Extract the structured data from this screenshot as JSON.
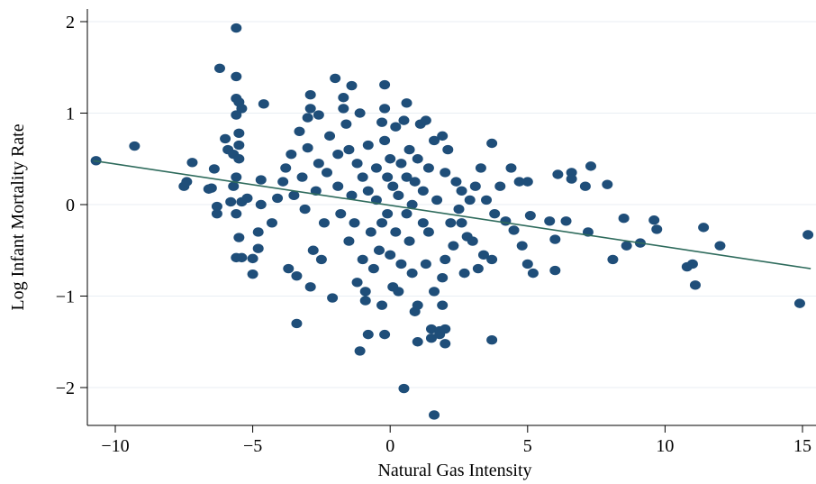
{
  "chart_data": {
    "type": "scatter",
    "title": "",
    "xlabel": "Natural Gas Intensity",
    "ylabel": "Log Infant Mortality Rate",
    "xlim": [
      -11,
      15.5
    ],
    "ylim": [
      -2.4,
      2.1
    ],
    "xticks": [
      -10,
      -5,
      0,
      5,
      10,
      15
    ],
    "xtick_labels": [
      "−10",
      "−5",
      "0",
      "5",
      "10",
      "15"
    ],
    "yticks": [
      -2,
      -1,
      0,
      1,
      2
    ],
    "ytick_labels": [
      "−2",
      "−1",
      "0",
      "1",
      "2"
    ],
    "grid": "horizontal",
    "marker_color": "#1f4e79",
    "fit_line_color": "#2e6b5c",
    "fit_line": {
      "x": [
        -10.8,
        15.3
      ],
      "y": [
        0.48,
        -0.7
      ]
    },
    "series": [
      {
        "points": [
          [
            -10.7,
            0.48
          ],
          [
            -9.3,
            0.64
          ],
          [
            -7.5,
            0.2
          ],
          [
            -7.4,
            0.25
          ],
          [
            -7.2,
            0.46
          ],
          [
            -6.6,
            0.17
          ],
          [
            -6.5,
            0.18
          ],
          [
            -6.4,
            0.39
          ],
          [
            -6.3,
            -0.02
          ],
          [
            -6.3,
            -0.1
          ],
          [
            -6.2,
            1.49
          ],
          [
            -6.0,
            0.72
          ],
          [
            -5.9,
            0.6
          ],
          [
            -5.8,
            0.03
          ],
          [
            -5.7,
            0.55
          ],
          [
            -5.6,
            -0.1
          ],
          [
            -5.7,
            0.2
          ],
          [
            -5.6,
            1.93
          ],
          [
            -5.6,
            1.4
          ],
          [
            -5.6,
            1.16
          ],
          [
            -5.5,
            1.12
          ],
          [
            -5.6,
            0.98
          ],
          [
            -5.5,
            0.78
          ],
          [
            -5.5,
            0.65
          ],
          [
            -5.5,
            0.5
          ],
          [
            -5.6,
            0.3
          ],
          [
            -5.4,
            0.03
          ],
          [
            -5.5,
            -0.36
          ],
          [
            -5.6,
            -0.58
          ],
          [
            -5.4,
            -0.58
          ],
          [
            -5.4,
            1.05
          ],
          [
            -5.2,
            0.07
          ],
          [
            -5.0,
            -0.59
          ],
          [
            -5.0,
            -0.76
          ],
          [
            -4.8,
            -0.48
          ],
          [
            -4.8,
            -0.3
          ],
          [
            -4.7,
            0.0
          ],
          [
            -4.7,
            0.27
          ],
          [
            -4.6,
            1.1
          ],
          [
            -4.3,
            -0.2
          ],
          [
            -4.1,
            0.07
          ],
          [
            -3.9,
            0.25
          ],
          [
            -3.8,
            0.4
          ],
          [
            -3.7,
            -0.7
          ],
          [
            -3.6,
            0.55
          ],
          [
            -3.5,
            0.1
          ],
          [
            -3.4,
            -1.3
          ],
          [
            -3.4,
            -0.78
          ],
          [
            -3.3,
            0.8
          ],
          [
            -3.2,
            0.3
          ],
          [
            -3.1,
            -0.05
          ],
          [
            -3.0,
            0.62
          ],
          [
            -3.0,
            0.95
          ],
          [
            -2.9,
            1.2
          ],
          [
            -2.9,
            1.05
          ],
          [
            -2.9,
            -0.9
          ],
          [
            -2.8,
            -0.5
          ],
          [
            -2.7,
            0.15
          ],
          [
            -2.6,
            0.45
          ],
          [
            -2.6,
            0.98
          ],
          [
            -2.5,
            -0.6
          ],
          [
            -2.4,
            -0.2
          ],
          [
            -2.3,
            0.35
          ],
          [
            -2.2,
            0.75
          ],
          [
            -2.1,
            -1.02
          ],
          [
            -2.0,
            1.38
          ],
          [
            -1.9,
            0.2
          ],
          [
            -1.9,
            0.55
          ],
          [
            -1.8,
            -0.1
          ],
          [
            -1.7,
            1.17
          ],
          [
            -1.7,
            1.05
          ],
          [
            -1.6,
            0.88
          ],
          [
            -1.5,
            0.6
          ],
          [
            -1.5,
            -0.4
          ],
          [
            -1.4,
            1.3
          ],
          [
            -1.4,
            0.1
          ],
          [
            -1.3,
            -0.2
          ],
          [
            -1.2,
            0.45
          ],
          [
            -1.2,
            -0.85
          ],
          [
            -1.1,
            1.0
          ],
          [
            -1.1,
            -1.6
          ],
          [
            -1.0,
            0.3
          ],
          [
            -1.0,
            -0.6
          ],
          [
            -0.9,
            -0.95
          ],
          [
            -0.9,
            -1.05
          ],
          [
            -0.8,
            0.15
          ],
          [
            -0.8,
            0.65
          ],
          [
            -0.8,
            -1.42
          ],
          [
            -0.7,
            -0.3
          ],
          [
            -0.6,
            -0.7
          ],
          [
            -0.5,
            0.4
          ],
          [
            -0.5,
            0.05
          ],
          [
            -0.4,
            -0.5
          ],
          [
            -0.3,
            0.9
          ],
          [
            -0.3,
            -1.1
          ],
          [
            -0.3,
            -0.2
          ],
          [
            -0.2,
            1.31
          ],
          [
            -0.2,
            1.05
          ],
          [
            -0.2,
            0.7
          ],
          [
            -0.2,
            -1.42
          ],
          [
            -0.1,
            0.3
          ],
          [
            -0.1,
            -0.1
          ],
          [
            0.0,
            0.5
          ],
          [
            0.0,
            -0.55
          ],
          [
            0.1,
            -0.9
          ],
          [
            0.1,
            0.2
          ],
          [
            0.2,
            0.85
          ],
          [
            0.2,
            -0.3
          ],
          [
            0.3,
            0.1
          ],
          [
            0.3,
            -0.95
          ],
          [
            0.4,
            0.45
          ],
          [
            0.4,
            -0.65
          ],
          [
            0.5,
            0.92
          ],
          [
            0.5,
            -2.01
          ],
          [
            0.6,
            0.3
          ],
          [
            0.6,
            1.11
          ],
          [
            0.6,
            -0.1
          ],
          [
            0.7,
            0.6
          ],
          [
            0.7,
            -0.4
          ],
          [
            0.8,
            0.0
          ],
          [
            0.8,
            -0.75
          ],
          [
            0.9,
            -1.17
          ],
          [
            0.9,
            0.25
          ],
          [
            1.0,
            -1.5
          ],
          [
            1.0,
            -1.1
          ],
          [
            1.0,
            0.5
          ],
          [
            1.1,
            0.88
          ],
          [
            1.2,
            -0.2
          ],
          [
            1.2,
            0.15
          ],
          [
            1.3,
            0.92
          ],
          [
            1.3,
            -0.65
          ],
          [
            1.4,
            0.4
          ],
          [
            1.4,
            -0.3
          ],
          [
            1.5,
            -1.36
          ],
          [
            1.5,
            -1.46
          ],
          [
            1.6,
            0.7
          ],
          [
            1.6,
            -2.3
          ],
          [
            1.6,
            -0.95
          ],
          [
            1.7,
            0.05
          ],
          [
            1.8,
            -1.38
          ],
          [
            1.8,
            -1.42
          ],
          [
            1.9,
            0.75
          ],
          [
            1.9,
            -0.8
          ],
          [
            1.9,
            -1.1
          ],
          [
            2.0,
            -1.52
          ],
          [
            2.0,
            -1.36
          ],
          [
            2.0,
            -0.6
          ],
          [
            2.0,
            0.35
          ],
          [
            2.1,
            0.6
          ],
          [
            2.2,
            -0.2
          ],
          [
            2.3,
            -0.45
          ],
          [
            2.4,
            0.25
          ],
          [
            2.5,
            -0.05
          ],
          [
            2.6,
            -0.2
          ],
          [
            2.6,
            0.15
          ],
          [
            2.7,
            -0.75
          ],
          [
            2.8,
            -0.35
          ],
          [
            2.9,
            0.05
          ],
          [
            3.0,
            -0.4
          ],
          [
            3.1,
            0.2
          ],
          [
            3.2,
            -0.7
          ],
          [
            3.3,
            0.4
          ],
          [
            3.4,
            -0.55
          ],
          [
            3.5,
            0.05
          ],
          [
            3.7,
            0.67
          ],
          [
            3.7,
            -0.6
          ],
          [
            3.7,
            -1.48
          ],
          [
            3.8,
            -0.1
          ],
          [
            4.0,
            0.2
          ],
          [
            4.2,
            -0.18
          ],
          [
            4.4,
            0.4
          ],
          [
            4.5,
            -0.28
          ],
          [
            4.7,
            0.25
          ],
          [
            4.8,
            -0.45
          ],
          [
            5.0,
            -0.65
          ],
          [
            5.0,
            0.25
          ],
          [
            5.1,
            -0.12
          ],
          [
            5.2,
            -0.75
          ],
          [
            5.8,
            -0.18
          ],
          [
            6.0,
            -0.38
          ],
          [
            6.0,
            -0.72
          ],
          [
            6.1,
            0.33
          ],
          [
            6.4,
            -0.18
          ],
          [
            6.6,
            0.35
          ],
          [
            6.6,
            0.28
          ],
          [
            7.1,
            0.2
          ],
          [
            7.3,
            0.42
          ],
          [
            7.2,
            -0.3
          ],
          [
            7.9,
            0.22
          ],
          [
            8.1,
            -0.6
          ],
          [
            8.5,
            -0.15
          ],
          [
            8.6,
            -0.45
          ],
          [
            9.1,
            -0.42
          ],
          [
            9.6,
            -0.17
          ],
          [
            9.7,
            -0.27
          ],
          [
            10.8,
            -0.68
          ],
          [
            11.0,
            -0.65
          ],
          [
            11.1,
            -0.88
          ],
          [
            11.4,
            -0.25
          ],
          [
            12.0,
            -0.45
          ],
          [
            14.9,
            -1.08
          ],
          [
            15.2,
            -0.33
          ]
        ]
      }
    ]
  }
}
